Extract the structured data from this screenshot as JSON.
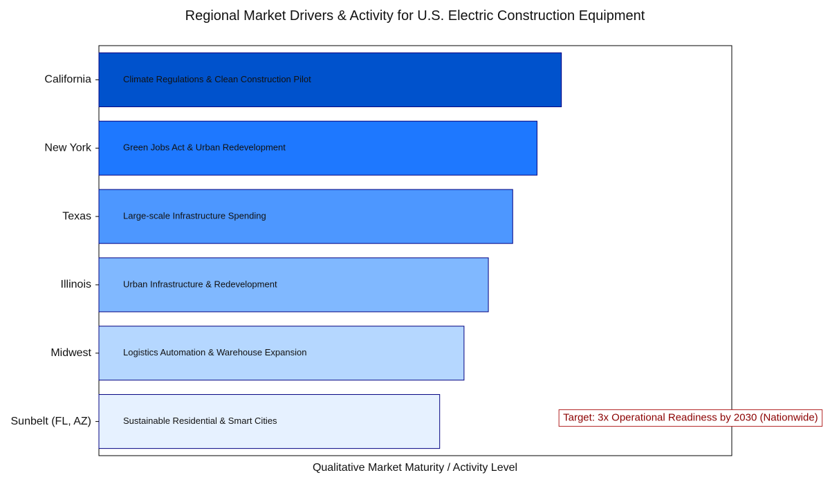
{
  "chart_data": {
    "type": "bar",
    "orientation": "horizontal",
    "title": "Regional Market Drivers & Activity for U.S. Electric Construction Equipment",
    "xlabel": "Qualitative Market Maturity / Activity Level",
    "ylabel": "",
    "grid": false,
    "xlim": [
      0,
      13
    ],
    "categories": [
      "California",
      "New York",
      "Texas",
      "Illinois",
      "Midwest",
      "Sunbelt (FL, AZ)"
    ],
    "values": [
      9.5,
      9.0,
      8.5,
      8.0,
      7.5,
      7.0
    ],
    "bar_labels": [
      "Climate Regulations & Clean Construction Pilot",
      "Green Jobs Act & Urban Redevelopment",
      "Large-scale Infrastructure Spending",
      "Urban Infrastructure & Redevelopment",
      "Logistics Automation & Warehouse Expansion",
      "Sustainable Residential & Smart Cities"
    ],
    "bar_colors": [
      "#0052CC",
      "#1E78FF",
      "#4D97FF",
      "#80B8FF",
      "#B5D7FF",
      "#E6F1FF"
    ],
    "bar_edge_color": "#000080",
    "annotation": {
      "text": "Target: 3x Operational Readiness by 2030 (Nationwide)",
      "color": "#8B0000",
      "box_edge_color": "#B22222",
      "x": 9.45,
      "y_category": "Sunbelt (FL, AZ)"
    }
  }
}
